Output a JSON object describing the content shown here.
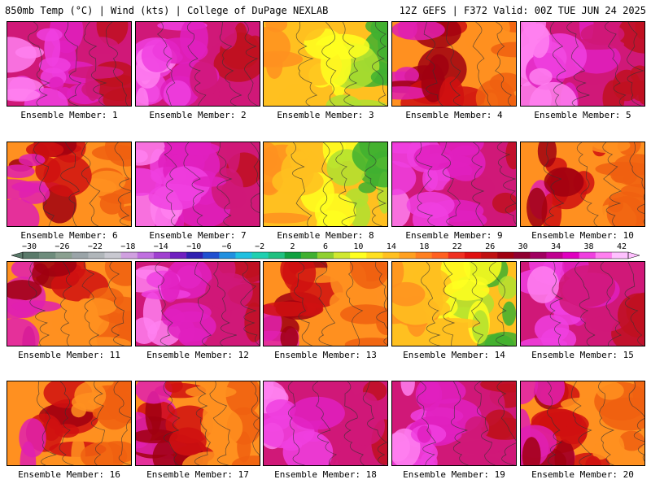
{
  "header": {
    "left": "850mb Temp (°C) | Wind (kts) | College of DuPage NEXLAB",
    "right": "12Z GEFS | F372 Valid: 00Z TUE JUN 24 2025"
  },
  "panels": [
    {
      "label": "Ensemble Member: 1",
      "style": "hot"
    },
    {
      "label": "Ensemble Member: 2",
      "style": "hot"
    },
    {
      "label": "Ensemble Member: 3",
      "style": "cool"
    },
    {
      "label": "Ensemble Member: 4",
      "style": "warm"
    },
    {
      "label": "Ensemble Member: 5",
      "style": "hot"
    },
    {
      "label": "Ensemble Member: 6",
      "style": "warm"
    },
    {
      "label": "Ensemble Member: 7",
      "style": "hot"
    },
    {
      "label": "Ensemble Member: 8",
      "style": "cool"
    },
    {
      "label": "Ensemble Member: 9",
      "style": "hot"
    },
    {
      "label": "Ensemble Member: 10",
      "style": "warm"
    },
    {
      "label": "Ensemble Member: 11",
      "style": "warm"
    },
    {
      "label": "Ensemble Member: 12",
      "style": "hot"
    },
    {
      "label": "Ensemble Member: 13",
      "style": "warm"
    },
    {
      "label": "Ensemble Member: 14",
      "style": "cool"
    },
    {
      "label": "Ensemble Member: 15",
      "style": "hot"
    },
    {
      "label": "Ensemble Member: 16",
      "style": "warm"
    },
    {
      "label": "Ensemble Member: 17",
      "style": "warm"
    },
    {
      "label": "Ensemble Member: 18",
      "style": "hot"
    },
    {
      "label": "Ensemble Member: 19",
      "style": "hot"
    },
    {
      "label": "Ensemble Member: 20",
      "style": "warm"
    }
  ],
  "colorbar": {
    "ticks": [
      "−30",
      "−26",
      "−22",
      "−18",
      "−14",
      "−10",
      "−6",
      "−2",
      "2",
      "6",
      "10",
      "14",
      "18",
      "22",
      "26",
      "30",
      "34",
      "38",
      "42"
    ],
    "colors": [
      "#5a7a6a",
      "#6e8c7c",
      "#8aa090",
      "#9aa4a8",
      "#b0b6ba",
      "#c8c8d0",
      "#d0a0e0",
      "#c070e0",
      "#a040d0",
      "#7020c0",
      "#3020b0",
      "#2050d0",
      "#2090e0",
      "#20c0e0",
      "#20d0b0",
      "#20c080",
      "#10a040",
      "#40b030",
      "#90d030",
      "#d0e830",
      "#ffff20",
      "#ffe020",
      "#ffc020",
      "#ffa020",
      "#ff8020",
      "#ff6020",
      "#f03020",
      "#e01010",
      "#c01010",
      "#a00010",
      "#900030",
      "#a00060",
      "#c00090",
      "#e000c0",
      "#f040e0",
      "#ff80f0",
      "#ffc0ff"
    ]
  },
  "palette": {
    "hot": [
      "#c01020",
      "#d01878",
      "#e020c0",
      "#f040e0",
      "#ff80f0"
    ],
    "warm": [
      "#f06010",
      "#ff9020",
      "#d01010",
      "#a00010",
      "#e020b0"
    ],
    "cool": [
      "#ff9020",
      "#ffc020",
      "#ffff20",
      "#b0e030",
      "#40b030"
    ]
  }
}
